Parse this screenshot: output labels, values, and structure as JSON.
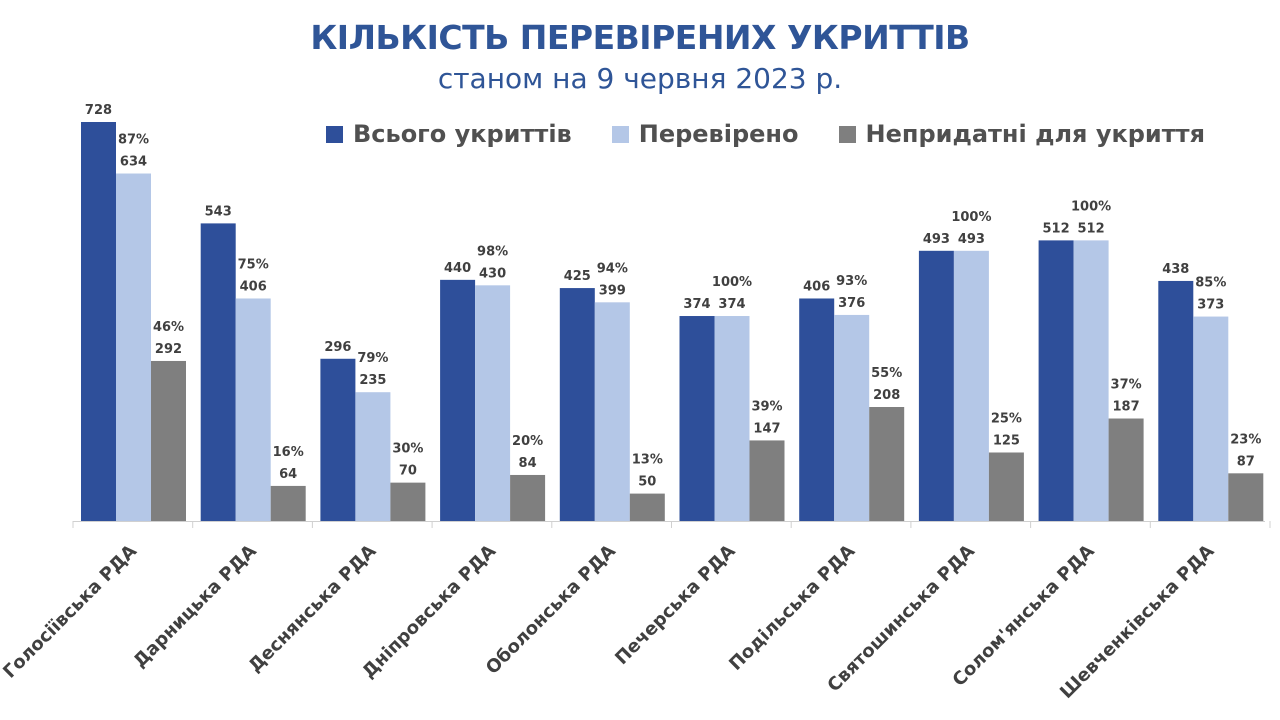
{
  "chart_data": {
    "type": "bar",
    "title": "КІЛЬКІСТЬ ПЕРЕВІРЕНИХ УКРИТТІВ",
    "subtitle": "станом на 9 червня 2023 р.",
    "legend_position": "top-right",
    "grid": false,
    "categories": [
      "Голосіївська РДА",
      "Дарницька РДА",
      "Деснянська РДА",
      "Дніпровська РДА",
      "Оболонська РДА",
      "Печерська РДА",
      "Подільська РДА",
      "Святошинська РДА",
      "Солом'янська РДА",
      "Шевченківська РДА"
    ],
    "series": [
      {
        "name": "Всього укриттів",
        "color": "#2E4F9A",
        "values": [
          728,
          543,
          296,
          440,
          425,
          374,
          406,
          493,
          512,
          438
        ],
        "percent_labels": []
      },
      {
        "name": "Перевірено",
        "color": "#B4C7E7",
        "values": [
          634,
          406,
          235,
          430,
          399,
          374,
          376,
          493,
          512,
          373
        ],
        "percent_labels": [
          "87%",
          "75%",
          "79%",
          "98%",
          "94%",
          "100%",
          "93%",
          "100%",
          "100%",
          "85%"
        ]
      },
      {
        "name": "Непридатні для укриття",
        "color": "#7F7F7F",
        "values": [
          292,
          64,
          70,
          84,
          50,
          147,
          208,
          125,
          187,
          87
        ],
        "percent_labels": [
          "46%",
          "16%",
          "30%",
          "20%",
          "13%",
          "39%",
          "55%",
          "25%",
          "37%",
          "23%"
        ]
      }
    ],
    "ylim": [
      0,
      800
    ]
  }
}
